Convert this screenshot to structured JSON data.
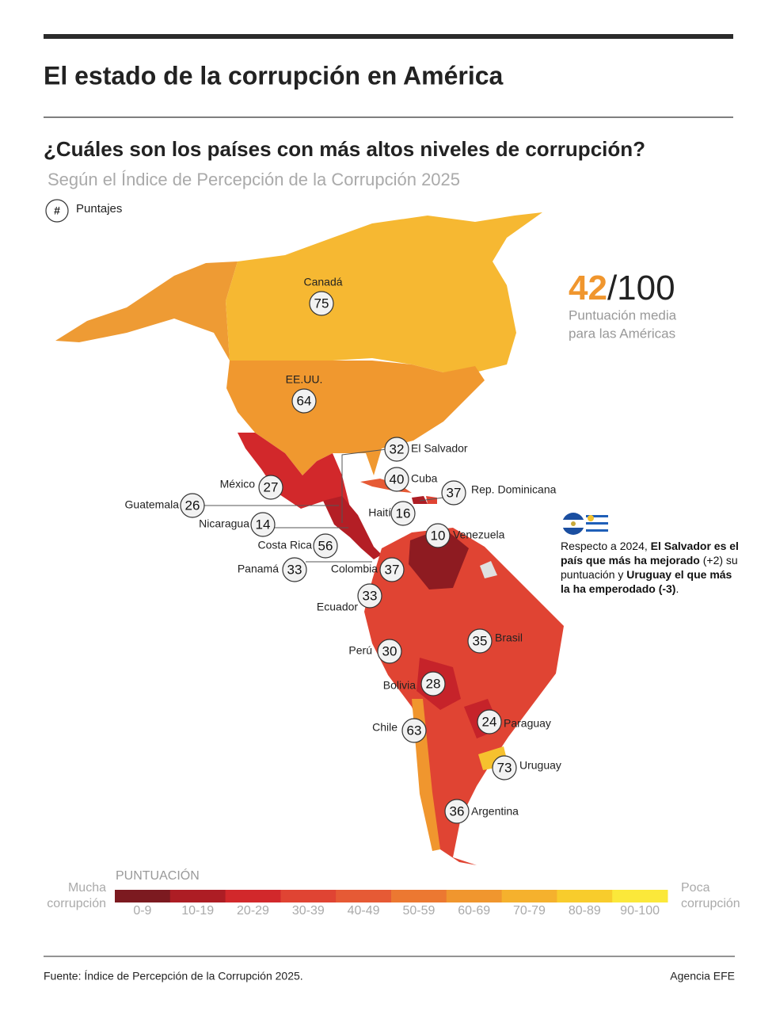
{
  "header": {
    "title": "El estado de la corrupción en América"
  },
  "subtitle": "¿Cuáles son los países con más altos niveles de corrupción?",
  "source_note": "Según el Índice de Percepción de la Corrupción 2025",
  "key": {
    "symbol": "#",
    "label": "Puntajes"
  },
  "average": {
    "score": 42,
    "scale": "/100",
    "label": [
      "Puntuación media",
      "para las Américas"
    ]
  },
  "countries": [
    {
      "name": "Canadá",
      "score": 75
    },
    {
      "name": "EE.UU.",
      "score": 64
    },
    {
      "name": "El Salvador",
      "score": 32
    },
    {
      "name": "Cuba",
      "score": 40
    },
    {
      "name": "Rep. Dominicana",
      "score": 37
    },
    {
      "name": "Haití",
      "score": 16
    },
    {
      "name": "Venezuela",
      "score": 10
    },
    {
      "name": "México",
      "score": 27
    },
    {
      "name": "Guatemala",
      "score": 26
    },
    {
      "name": "Nicaragua",
      "score": 14
    },
    {
      "name": "Costa Rica",
      "score": 56
    },
    {
      "name": "Panamá",
      "score": 33
    },
    {
      "name": "Colombia",
      "score": 37
    },
    {
      "name": "Ecuador",
      "score": 33
    },
    {
      "name": "Perú",
      "score": 30
    },
    {
      "name": "Brasil",
      "score": 35
    },
    {
      "name": "Bolivia",
      "score": 28
    },
    {
      "name": "Paraguay",
      "score": 24
    },
    {
      "name": "Chile",
      "score": 63
    },
    {
      "name": "Uruguay",
      "score": 73
    },
    {
      "name": "Argentina",
      "score": 36
    }
  ],
  "note": {
    "lines": [
      [
        {
          "text": "Respecto a 2024, ",
          "bold": false
        },
        {
          "text": "El Salvador es el",
          "bold": true
        }
      ],
      [
        {
          "text": "país que más ha mejorado",
          "bold": true
        },
        {
          "text": " (+2) su",
          "bold": false
        }
      ],
      [
        {
          "text": "puntuación  y ",
          "bold": false
        },
        {
          "text": "Uruguay el que más",
          "bold": true
        }
      ],
      [
        {
          "text": "la ha emperodado (-3)",
          "bold": true
        },
        {
          "text": ".",
          "bold": false
        }
      ]
    ]
  },
  "legend": {
    "title": "PUNTUACIÓN",
    "left": [
      "Mucha",
      "corrupción"
    ],
    "right": [
      "Poca",
      "corrupción"
    ],
    "bins": [
      {
        "label": "0-9",
        "color": "#7c1a20"
      },
      {
        "label": "10-19",
        "color": "#ad1d24"
      },
      {
        "label": "20-29",
        "color": "#d2282b"
      },
      {
        "label": "30-39",
        "color": "#e04433"
      },
      {
        "label": "40-49",
        "color": "#e65a35"
      },
      {
        "label": "50-59",
        "color": "#ec7831"
      },
      {
        "label": "60-69",
        "color": "#f0962e"
      },
      {
        "label": "70-79",
        "color": "#f5b12d"
      },
      {
        "label": "80-89",
        "color": "#f8cc2c"
      },
      {
        "label": "90-100",
        "color": "#fbe83a"
      }
    ]
  },
  "footer": {
    "source": "Fuente: Índice de Percepción de la Corrupción 2025.",
    "agency": "Agencia EFE"
  }
}
